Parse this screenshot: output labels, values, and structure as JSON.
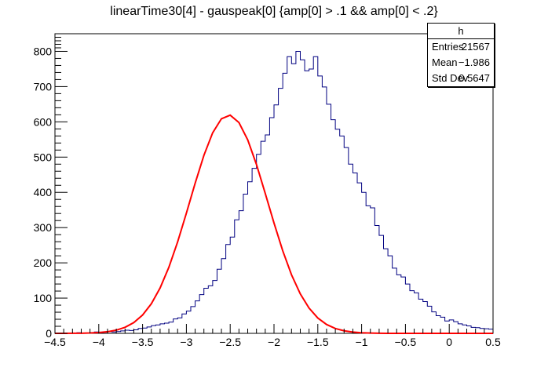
{
  "title": "linearTime30[4] - gauspeak[0] {amp[0] > .1 && amp[0] < .2}",
  "stats": {
    "name": "h",
    "rows": [
      {
        "label": "Entries",
        "value": "21567"
      },
      {
        "label": "Mean",
        "value": "−1.986"
      },
      {
        "label": "Std Dev",
        "value": "0.5647"
      }
    ]
  },
  "colors": {
    "histogram": "#000080",
    "fit": "#ff0000",
    "axis": "#000000"
  },
  "chart_data": {
    "type": "area",
    "title": "linearTime30[4] - gauspeak[0] {amp[0] > .1 && amp[0] < .2}",
    "xlabel": "",
    "ylabel": "",
    "xlim": [
      -4.5,
      0.5
    ],
    "ylim": [
      0,
      850
    ],
    "grid": false,
    "x_ticks": [
      -4.5,
      -4,
      -3.5,
      -3,
      -2.5,
      -2,
      -1.5,
      -1,
      -0.5,
      0,
      0.5
    ],
    "x_tick_labels": [
      "−4.5",
      "−4",
      "−3.5",
      "−3",
      "−2.5",
      "−2",
      "−1.5",
      "−1",
      "−0.5",
      "0",
      "0.5"
    ],
    "y_ticks": [
      0,
      100,
      200,
      300,
      400,
      500,
      600,
      700,
      800
    ],
    "y_tick_labels": [
      "0",
      "100",
      "200",
      "300",
      "400",
      "500",
      "600",
      "700",
      "800"
    ],
    "histogram": {
      "bin_width": 0.05,
      "x_start": -4.5,
      "counts": [
        1,
        0,
        0,
        1,
        0,
        2,
        1,
        1,
        2,
        4,
        2,
        3,
        5,
        4,
        5,
        7,
        9,
        8,
        10,
        14,
        15,
        18,
        22,
        24,
        27,
        29,
        32,
        41,
        44,
        55,
        63,
        76,
        92,
        110,
        128,
        135,
        150,
        182,
        212,
        252,
        273,
        322,
        348,
        395,
        430,
        468,
        508,
        545,
        563,
        612,
        648,
        695,
        738,
        785,
        765,
        800,
        776,
        745,
        750,
        785,
        730,
        699,
        650,
        606,
        579,
        560,
        527,
        480,
        455,
        427,
        400,
        362,
        356,
        306,
        278,
        240,
        220,
        185,
        166,
        160,
        140,
        121,
        115,
        97,
        90,
        77,
        61,
        50,
        46,
        35,
        38,
        33,
        27,
        24,
        21,
        17,
        16,
        14,
        13,
        12
      ]
    },
    "series": [
      {
        "type": "line",
        "x": [
          -4.5,
          -4.4,
          -4.3,
          -4.2,
          -4.1,
          -4.0,
          -3.9,
          -3.8,
          -3.7,
          -3.6,
          -3.5,
          -3.4,
          -3.3,
          -3.2,
          -3.1,
          -3.0,
          -2.9,
          -2.8,
          -2.7,
          -2.6,
          -2.5,
          -2.4,
          -2.3,
          -2.2,
          -2.1,
          -2.0,
          -1.9,
          -1.8,
          -1.7,
          -1.6,
          -1.5,
          -1.4,
          -1.3,
          -1.2,
          -1.1,
          -1.0,
          -0.9,
          -0.8,
          -0.7,
          -0.6,
          -0.5,
          -0.4,
          -0.3,
          -0.2,
          -0.1,
          0.0,
          0.1,
          0.2,
          0.3,
          0.4,
          0.5
        ],
        "y": [
          0.0,
          0.1,
          0.2,
          0.4,
          1.0,
          2.2,
          4.6,
          9.1,
          17.1,
          30.6,
          52.0,
          83.9,
          128.7,
          187.4,
          259.4,
          341.0,
          425.8,
          505.0,
          569.0,
          608.8,
          619.0,
          598.0,
          549.0,
          479.0,
          397.0,
          313.0,
          234.0,
          166.0,
          112.0,
          71.6,
          43.5,
          25.1,
          13.8,
          7.2,
          3.6,
          1.7,
          0.8,
          0.3,
          0.1,
          0.05,
          0.02,
          0.0,
          0.0,
          0.0,
          0.0,
          0.0,
          0.0,
          0.0,
          0.0,
          0.0,
          0.0
        ]
      }
    ]
  }
}
